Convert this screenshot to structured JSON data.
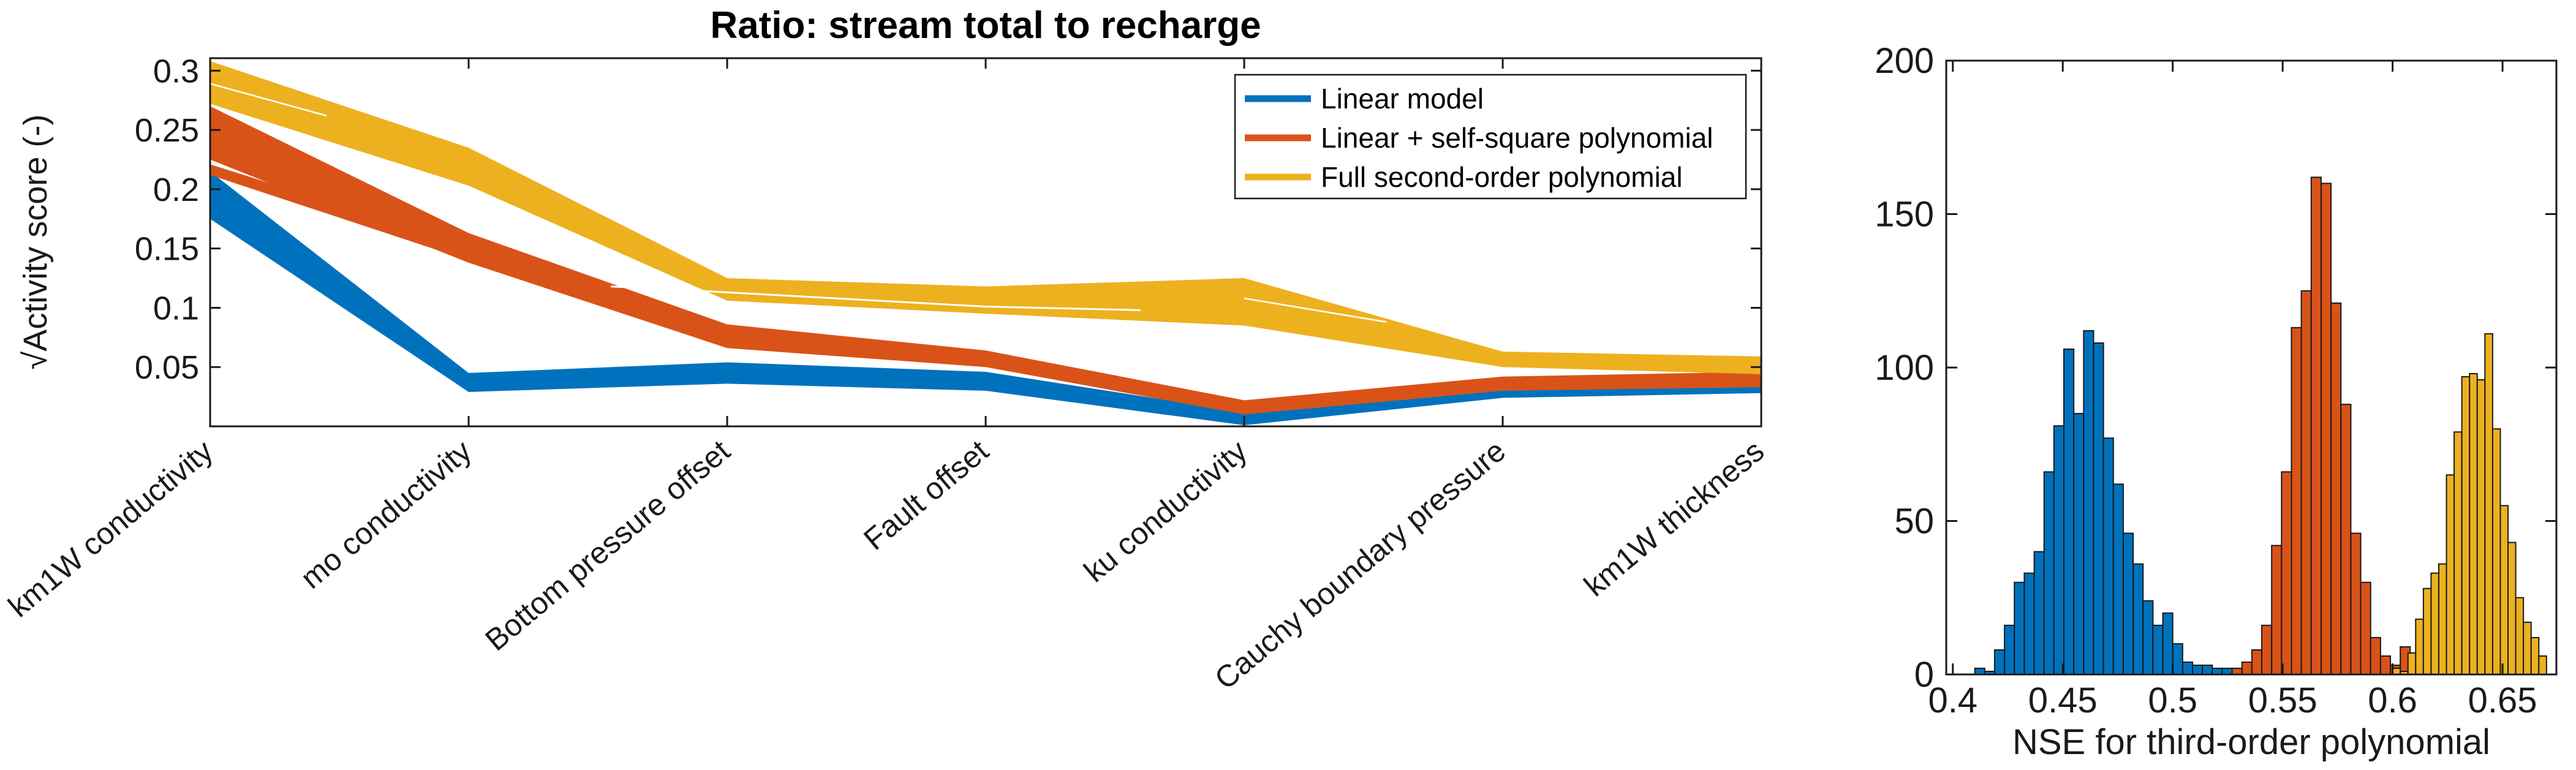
{
  "accent_colors": {
    "blue": "#0072BD",
    "orange": "#D95319",
    "yellow": "#EDB120",
    "axis": "#1a1a1a",
    "background": "#ffffff"
  },
  "chart_data": [
    {
      "type": "line",
      "subtype": "ensemble-band",
      "title": "Ratio: stream total to recharge",
      "xlabel": "",
      "ylabel": "√Activity score (-)",
      "ylim": [
        0,
        0.3105
      ],
      "yticks": [
        0.05,
        0.1,
        0.15,
        0.2,
        0.25,
        0.3
      ],
      "ytick_labels": [
        "0.05",
        "0.1",
        "0.15",
        "0.2",
        "0.25",
        "0.3"
      ],
      "grid": false,
      "box": true,
      "categories": [
        "km1W conductivity",
        "mo conductivity",
        "Bottom pressure offset",
        "Fault offset",
        "ku conductivity",
        "Cauchy boundary pressure",
        "km1W thickness"
      ],
      "legend": {
        "position": "northeast",
        "entries": [
          "Linear model",
          "Linear + self-square polynomial",
          "Full second-order polynomial"
        ]
      },
      "series": [
        {
          "id": "linear-model",
          "name": "Linear model",
          "color": "#0072BD",
          "band_lower": [
            0.175,
            0.029,
            0.036,
            0.03,
            0.001,
            0.024,
            0.028
          ],
          "band_upper": [
            0.215,
            0.045,
            0.054,
            0.046,
            0.012,
            0.035,
            0.039
          ]
        },
        {
          "id": "linear-self-square",
          "name": "Linear + self-square polynomial",
          "color": "#D95319",
          "band_lower": [
            0.225,
            0.138,
            0.066,
            0.05,
            0.01,
            0.03,
            0.033
          ],
          "band_upper": [
            0.27,
            0.163,
            0.086,
            0.064,
            0.022,
            0.042,
            0.046
          ],
          "sub_band_lower": [
            0.212,
            0.14,
            0.068,
            0.052,
            0.012,
            0.032,
            0.035
          ],
          "sub_band_upper": [
            0.221,
            0.152,
            0.078,
            0.06,
            0.019,
            0.04,
            0.043
          ]
        },
        {
          "id": "full-second-order",
          "name": "Full second-order polynomial",
          "color": "#EDB120",
          "band_lower": [
            0.272,
            0.203,
            0.106,
            0.095,
            0.085,
            0.05,
            0.044
          ],
          "band_upper": [
            0.308,
            0.235,
            0.125,
            0.118,
            0.125,
            0.063,
            0.059
          ]
        }
      ],
      "streaks": [
        {
          "points": [
            [
              1.55,
              0.118
            ],
            [
              2,
              0.113
            ],
            [
              3,
              0.101
            ],
            [
              3.6,
              0.098
            ]
          ],
          "width": 3
        },
        {
          "points": [
            [
              0,
              0.289
            ],
            [
              0.45,
              0.262
            ]
          ],
          "width": 2.5
        },
        {
          "points": [
            [
              4,
              0.108
            ],
            [
              4.55,
              0.088
            ]
          ],
          "width": 2.5
        }
      ]
    },
    {
      "type": "bar",
      "subtype": "histogram",
      "title": "",
      "xlabel": "NSE for third-order polynomial",
      "xlim": [
        0.397,
        0.6745
      ],
      "ylim": [
        0,
        200
      ],
      "xticks": [
        0.4,
        0.45,
        0.5,
        0.55,
        0.6,
        0.65
      ],
      "xtick_labels": [
        "0.4",
        "0.45",
        "0.5",
        "0.55",
        "0.6",
        "0.65"
      ],
      "yticks": [
        0,
        50,
        100,
        150,
        200
      ],
      "ytick_labels": [
        "0",
        "50",
        "100",
        "150",
        "200"
      ],
      "grid": false,
      "box": true,
      "bar_edge_color": "#1a1a1a",
      "series": [
        {
          "id": "linear-model",
          "name": "Linear model",
          "color": "#0072BD",
          "bin_start": 0.41,
          "bin_width": 0.0045,
          "counts": [
            2,
            1,
            8,
            16,
            30,
            33,
            40,
            66,
            81,
            106,
            85,
            112,
            108,
            77,
            62,
            46,
            36,
            24,
            16,
            20,
            10,
            4,
            3,
            3,
            2,
            2
          ]
        },
        {
          "id": "linear-self-square",
          "name": "Linear + self-square polynomial",
          "color": "#D95319",
          "bin_start": 0.527,
          "bin_width": 0.0045,
          "counts": [
            2,
            4,
            8,
            16,
            42,
            66,
            113,
            125,
            162,
            160,
            121,
            88,
            46,
            30,
            12,
            6,
            3,
            9,
            2
          ]
        },
        {
          "id": "full-second-order",
          "name": "Full second-order polynomial",
          "color": "#EDB120",
          "bin_start": 0.6,
          "bin_width": 0.0035,
          "counts": [
            2,
            1,
            7,
            18,
            28,
            33,
            36,
            65,
            79,
            97,
            98,
            96,
            111,
            80,
            55,
            43,
            25,
            17,
            12,
            6
          ]
        }
      ]
    }
  ]
}
